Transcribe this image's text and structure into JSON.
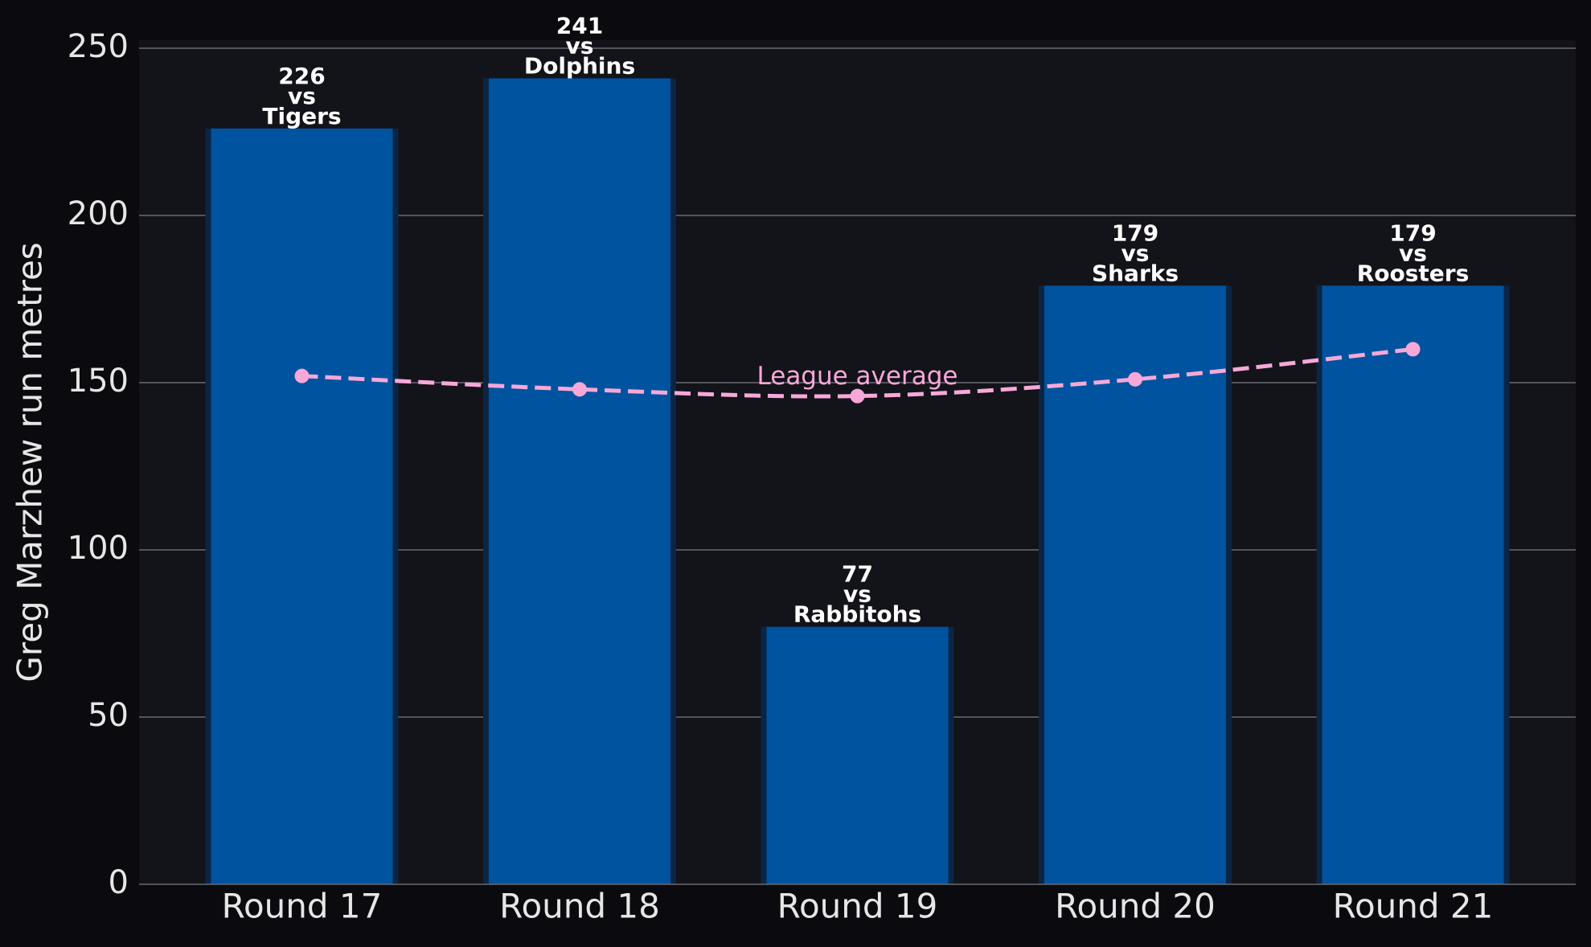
{
  "colors": {
    "page_background": "#0b0b0f",
    "plot_background": "#13131a",
    "bar_fill": "#00539f",
    "bar_shadow": "#0b2545",
    "grid": "#6b6b72",
    "tick_text": "#e6e6e6",
    "label_text": "#ffffff",
    "average_line": "#f7a8d8"
  },
  "chart_data": {
    "type": "bar",
    "ylabel": "Greg Marzhew run metres",
    "xlabel": "",
    "ylim": [
      0,
      253
    ],
    "yticks": [
      0,
      50,
      100,
      150,
      200,
      250
    ],
    "grid": true,
    "categories": [
      "Round 17",
      "Round 18",
      "Round 19",
      "Round 20",
      "Round 21"
    ],
    "series": [
      {
        "values": [
          226,
          241,
          77,
          179,
          179
        ],
        "opponents": [
          "Tigers",
          "Dolphins",
          "Rabbitohs",
          "Sharks",
          "Roosters"
        ],
        "vs_label": "vs"
      },
      {
        "name": "League average",
        "type": "line",
        "style": "dashed",
        "values": [
          152,
          148,
          146,
          151,
          160
        ]
      }
    ]
  }
}
